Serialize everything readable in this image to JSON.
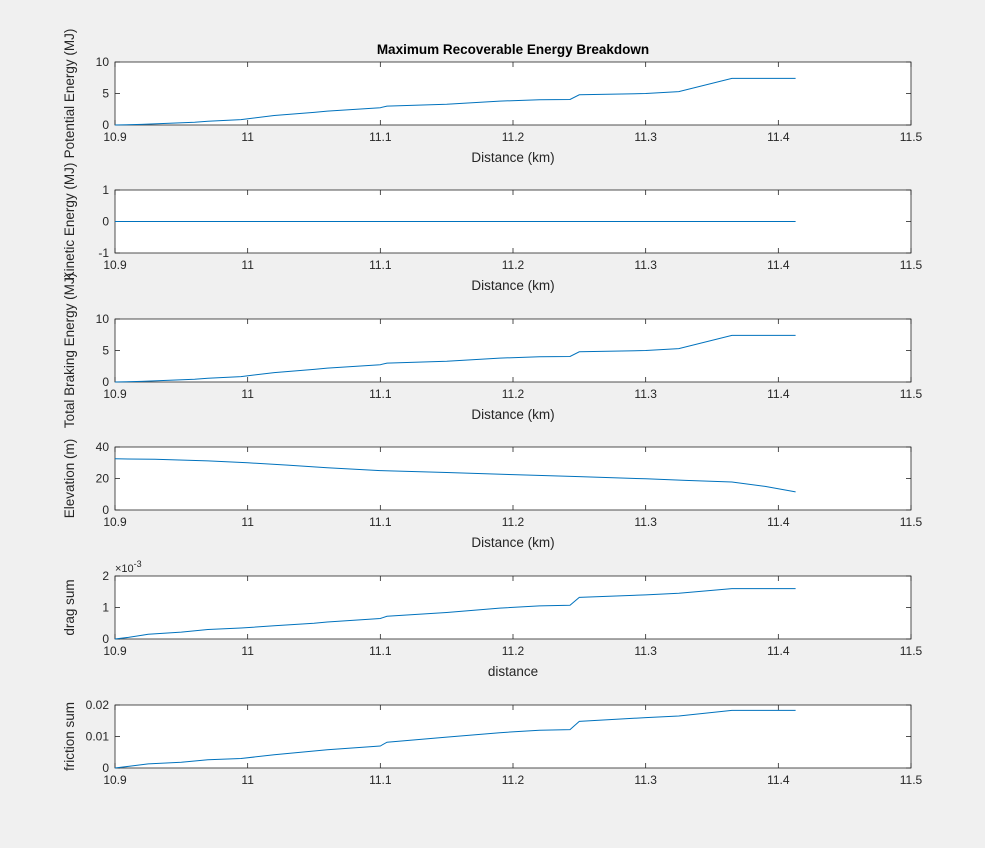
{
  "figure": {
    "background": "#f0f0f0",
    "axes_background": "#ffffff",
    "axes_color": "#262626",
    "line_color": "#0072bd"
  },
  "chart_data": [
    {
      "type": "line",
      "title": "Maximum Recoverable Energy Breakdown",
      "xlabel": "Distance (km)",
      "ylabel": "Potential Energy (MJ)",
      "xlim": [
        10.9,
        11.5
      ],
      "ylim": [
        0,
        10
      ],
      "xticks": [
        "10.9",
        "11",
        "11.1",
        "11.2",
        "11.3",
        "11.4",
        "11.5"
      ],
      "yticks": [
        "0",
        "5",
        "10"
      ],
      "exponent_label": "",
      "grid": false,
      "series": [
        {
          "x": [
            10.9,
            10.92,
            10.96,
            10.97,
            10.995,
            11.02,
            11.05,
            11.06,
            11.1,
            11.105,
            11.15,
            11.19,
            11.22,
            11.243,
            11.25,
            11.3,
            11.325,
            11.365,
            11.413
          ],
          "y": [
            0,
            0.1,
            0.45,
            0.6,
            0.85,
            1.5,
            2.0,
            2.2,
            2.75,
            3.0,
            3.3,
            3.8,
            4.0,
            4.05,
            4.8,
            5.0,
            5.3,
            7.4,
            7.4
          ]
        }
      ]
    },
    {
      "type": "line",
      "title": "",
      "xlabel": "Distance (km)",
      "ylabel": "Kinetic Energy (MJ)",
      "xlim": [
        10.9,
        11.5
      ],
      "ylim": [
        -1,
        1
      ],
      "xticks": [
        "10.9",
        "11",
        "11.1",
        "11.2",
        "11.3",
        "11.4",
        "11.5"
      ],
      "yticks": [
        "-1",
        "0",
        "1"
      ],
      "exponent_label": "",
      "grid": false,
      "series": [
        {
          "x": [
            10.9,
            11.413
          ],
          "y": [
            0,
            0
          ]
        }
      ]
    },
    {
      "type": "line",
      "title": "",
      "xlabel": "Distance (km)",
      "ylabel": "Total Braking Energy (MJ)",
      "xlim": [
        10.9,
        11.5
      ],
      "ylim": [
        0,
        10
      ],
      "xticks": [
        "10.9",
        "11",
        "11.1",
        "11.2",
        "11.3",
        "11.4",
        "11.5"
      ],
      "yticks": [
        "0",
        "5",
        "10"
      ],
      "exponent_label": "",
      "grid": false,
      "series": [
        {
          "x": [
            10.9,
            10.92,
            10.96,
            10.97,
            10.995,
            11.02,
            11.05,
            11.06,
            11.1,
            11.105,
            11.15,
            11.19,
            11.22,
            11.243,
            11.25,
            11.3,
            11.325,
            11.365,
            11.413
          ],
          "y": [
            0,
            0.1,
            0.45,
            0.6,
            0.85,
            1.5,
            2.0,
            2.2,
            2.75,
            3.0,
            3.3,
            3.8,
            4.0,
            4.05,
            4.8,
            5.0,
            5.3,
            7.4,
            7.4
          ]
        }
      ]
    },
    {
      "type": "line",
      "title": "",
      "xlabel": "Distance (km)",
      "ylabel": "Elevation (m)",
      "xlim": [
        10.9,
        11.5
      ],
      "ylim": [
        0,
        40
      ],
      "xticks": [
        "10.9",
        "11",
        "11.1",
        "11.2",
        "11.3",
        "11.4",
        "11.5"
      ],
      "yticks": [
        "0",
        "20",
        "40"
      ],
      "exponent_label": "",
      "grid": false,
      "series": [
        {
          "x": [
            10.9,
            10.93,
            10.97,
            11.0,
            11.03,
            11.06,
            11.1,
            11.15,
            11.2,
            11.25,
            11.3,
            11.33,
            11.365,
            11.39,
            11.413
          ],
          "y": [
            32.5,
            32.2,
            31.2,
            30.0,
            28.5,
            26.8,
            25.0,
            23.8,
            22.5,
            21.2,
            19.8,
            18.8,
            17.8,
            15.0,
            11.5
          ]
        }
      ]
    },
    {
      "type": "line",
      "title": "",
      "xlabel": "distance",
      "ylabel": "drag sum",
      "xlim": [
        10.9,
        11.5
      ],
      "ylim": [
        0,
        2
      ],
      "xticks": [
        "10.9",
        "11",
        "11.1",
        "11.2",
        "11.3",
        "11.4",
        "11.5"
      ],
      "yticks": [
        "0",
        "1",
        "2"
      ],
      "exponent_label": "×10^-3",
      "grid": false,
      "series": [
        {
          "x": [
            10.9,
            10.91,
            10.925,
            10.95,
            10.97,
            10.995,
            11.02,
            11.05,
            11.06,
            11.1,
            11.105,
            11.15,
            11.19,
            11.22,
            11.243,
            11.25,
            11.3,
            11.325,
            11.365,
            11.413
          ],
          "y": [
            0,
            0.05,
            0.15,
            0.22,
            0.3,
            0.35,
            0.42,
            0.5,
            0.54,
            0.65,
            0.72,
            0.84,
            0.98,
            1.05,
            1.07,
            1.32,
            1.4,
            1.45,
            1.6,
            1.6
          ]
        }
      ]
    },
    {
      "type": "line",
      "title": "",
      "xlabel": "",
      "ylabel": "friction sum",
      "xlim": [
        10.9,
        11.5
      ],
      "ylim": [
        0,
        0.02
      ],
      "xticks": [
        "10.9",
        "11",
        "11.1",
        "11.2",
        "11.3",
        "11.4",
        "11.5"
      ],
      "yticks": [
        "0",
        "0.01",
        "0.02"
      ],
      "exponent_label": "",
      "grid": false,
      "series": [
        {
          "x": [
            10.9,
            10.91,
            10.925,
            10.95,
            10.97,
            10.995,
            11.02,
            11.05,
            11.06,
            11.1,
            11.105,
            11.15,
            11.19,
            11.22,
            11.243,
            11.25,
            11.3,
            11.325,
            11.365,
            11.413
          ],
          "y": [
            0,
            0.0005,
            0.0013,
            0.0018,
            0.0026,
            0.003,
            0.0042,
            0.0054,
            0.0058,
            0.007,
            0.0082,
            0.0098,
            0.0112,
            0.012,
            0.0122,
            0.0148,
            0.016,
            0.0165,
            0.0183,
            0.0183
          ]
        }
      ]
    }
  ]
}
